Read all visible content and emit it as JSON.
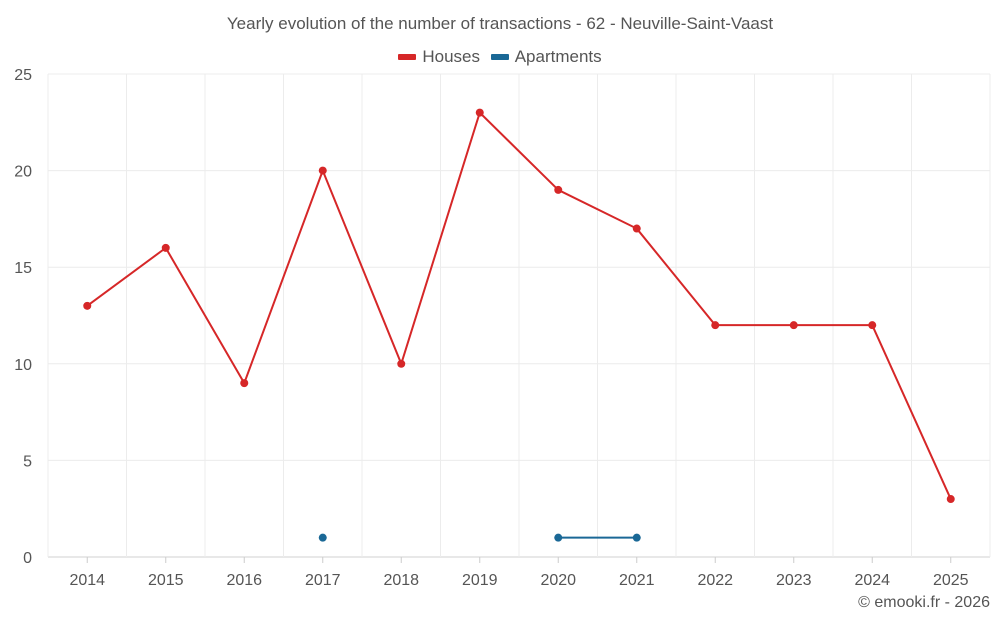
{
  "chart_data": {
    "type": "line",
    "title": "Yearly evolution of the number of transactions - 62 - Neuville-Saint-Vaast",
    "categories": [
      "2014",
      "2015",
      "2016",
      "2017",
      "2018",
      "2019",
      "2020",
      "2021",
      "2022",
      "2023",
      "2024",
      "2025"
    ],
    "series": [
      {
        "name": "Houses",
        "color": "#d62728",
        "values": [
          13,
          16,
          9,
          20,
          10,
          23,
          19,
          17,
          12,
          12,
          12,
          3
        ]
      },
      {
        "name": "Apartments",
        "color": "#1a6896",
        "values": [
          null,
          null,
          null,
          1,
          null,
          null,
          1,
          1,
          null,
          null,
          null,
          null
        ]
      }
    ],
    "ylim": [
      0,
      25
    ],
    "yticks": [
      0,
      5,
      10,
      15,
      20,
      25
    ],
    "grid": true,
    "legend": "top-center",
    "xlabel": "",
    "ylabel": ""
  },
  "credit": "© emooki.fr - 2026"
}
